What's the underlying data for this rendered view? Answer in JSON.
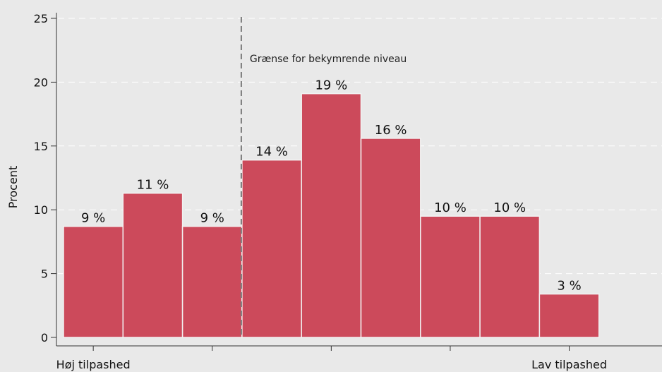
{
  "chart_data": {
    "type": "bar",
    "bars": [
      {
        "value": 8.7,
        "label": "9 %"
      },
      {
        "value": 11.3,
        "label": "11 %"
      },
      {
        "value": 8.7,
        "label": "9 %"
      },
      {
        "value": 13.9,
        "label": "14 %"
      },
      {
        "value": 19.1,
        "label": "19 %"
      },
      {
        "value": 15.6,
        "label": "16 %"
      },
      {
        "value": 9.5,
        "label": "10 %"
      },
      {
        "value": 9.5,
        "label": "10 %"
      },
      {
        "value": 3.4,
        "label": "3 %"
      }
    ],
    "x_tick_labels": [
      {
        "position": 1,
        "label": "Høj tilpashed"
      },
      {
        "position": 3,
        "label": ""
      },
      {
        "position": 5,
        "label": ""
      },
      {
        "position": 7,
        "label": ""
      },
      {
        "position": 9,
        "label": "Lav tilpashed"
      }
    ],
    "xlim": [
      0.5,
      9.5
    ],
    "ylabel": "Procent",
    "ylim": [
      0,
      25
    ],
    "yticks": [
      0,
      5,
      10,
      15,
      20,
      25
    ],
    "grid": true,
    "threshold": {
      "x": 3.5,
      "label": "Grænse for bekymrende niveau"
    },
    "colors": {
      "bar": "#cc4a5b",
      "bar_edge": "#f2f2f2",
      "background": "#e9e9e9",
      "gridline": "#ffffff",
      "axis": "#333333",
      "threshold": "#7a7a7a"
    }
  }
}
